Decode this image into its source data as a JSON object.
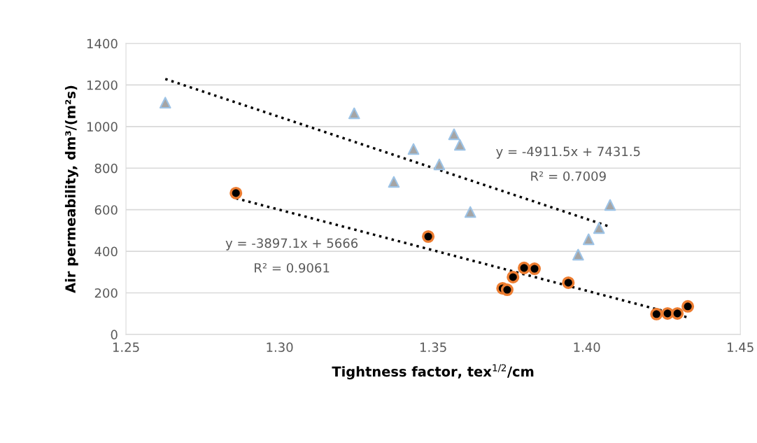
{
  "chart_data": {
    "type": "scatter",
    "xlabel": "Tightness factor, tex$^{1/2}$/cm",
    "ylabel": "Air permeability, dm³/(m²s)",
    "xlim": [
      1.25,
      1.45
    ],
    "xticks": [
      {
        "value": 1.25,
        "label": "1.25"
      },
      {
        "value": 1.3,
        "label": "1.30"
      },
      {
        "value": 1.35,
        "label": "1.35"
      },
      {
        "value": 1.4,
        "label": "1.40"
      },
      {
        "value": 1.45,
        "label": "1.45"
      }
    ],
    "ylim": [
      0,
      1400
    ],
    "yticks": [
      0,
      200,
      400,
      600,
      800,
      1000,
      1200,
      1400
    ],
    "grid": "y",
    "series": [
      {
        "marker": "triangle",
        "color": "#9dc3e6",
        "x": [
          1.2628,
          1.3243,
          1.3372,
          1.3436,
          1.352,
          1.3568,
          1.3587,
          1.3621,
          1.3972,
          1.4006,
          1.404,
          1.4076
        ],
        "values": [
          1115,
          1064,
          734,
          892,
          818,
          963,
          912,
          589,
          384,
          458,
          512,
          623
        ]
      },
      {
        "marker": "circle",
        "color": "#ed7d31",
        "x": [
          1.2858,
          1.3484,
          1.3726,
          1.3741,
          1.376,
          1.3796,
          1.383,
          1.394,
          1.4227,
          1.4263,
          1.4295,
          1.4329
        ],
        "values": [
          680,
          471,
          222,
          215,
          276,
          320,
          316,
          249,
          98,
          101,
          101,
          135
        ]
      },
      {
        "type": "line",
        "marker": "none",
        "line_style": "dotted",
        "color": "#000000",
        "x": [
          1.2628,
          1.4076
        ],
        "values": [
          1229,
          518
        ]
      },
      {
        "type": "line",
        "marker": "none",
        "line_style": "dotted",
        "color": "#000000",
        "x": [
          1.2858,
          1.4329
        ],
        "values": [
          655,
          82
        ]
      }
    ],
    "annotations": [
      "y = -4911.5x + 7431.5",
      "R² = 0.7009",
      "y = -3897.1x + 5666",
      "R² = 0.9061"
    ]
  }
}
